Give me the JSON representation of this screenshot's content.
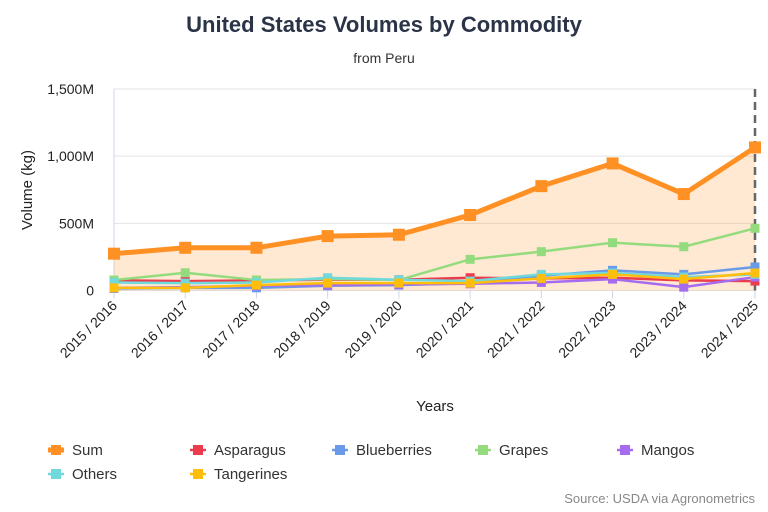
{
  "chart_data": {
    "type": "line",
    "title": "United States Volumes by Commodity",
    "subtitle": "from Peru",
    "xlabel": "Years",
    "ylabel": "Volume (kg)",
    "ylim": [
      0,
      1500
    ],
    "yticks": [
      {
        "v": 0,
        "label": "0"
      },
      {
        "v": 500,
        "label": "500M"
      },
      {
        "v": 1000,
        "label": "1,000M"
      },
      {
        "v": 1500,
        "label": "1,500M"
      }
    ],
    "grid": true,
    "legend_placement": "bottom",
    "categories": [
      "2015 / 2016",
      "2016 / 2017",
      "2017 / 2018",
      "2018 / 2019",
      "2019 / 2020",
      "2020 / 2021",
      "2021 / 2022",
      "2022 / 2023",
      "2023 / 2024",
      "2024 / 2025"
    ],
    "series": [
      {
        "name": "Sum",
        "color": "#ff9124",
        "area": true,
        "values": [
          274,
          318,
          318,
          405,
          415,
          562,
          777,
          946,
          718,
          1065
        ]
      },
      {
        "name": "Asparagus",
        "color": "#ec3b4c",
        "values": [
          75,
          70,
          75,
          80,
          80,
          95,
          90,
          95,
          75,
          70
        ]
      },
      {
        "name": "Blueberries",
        "color": "#6a9be8",
        "values": [
          15,
          20,
          20,
          35,
          40,
          55,
          110,
          150,
          120,
          175
        ]
      },
      {
        "name": "Grapes",
        "color": "#94db7e",
        "values": [
          78,
          132,
          78,
          85,
          78,
          232,
          289,
          356,
          326,
          463
        ]
      },
      {
        "name": "Mangos",
        "color": "#a56cf0",
        "values": [
          20,
          25,
          35,
          40,
          45,
          50,
          60,
          85,
          25,
          100
        ]
      },
      {
        "name": "Others",
        "color": "#6fd9dc",
        "values": [
          60,
          55,
          60,
          95,
          80,
          70,
          120,
          130,
          100,
          120
        ]
      },
      {
        "name": "Tangerines",
        "color": "#ffbe0b",
        "values": [
          20,
          20,
          40,
          55,
          55,
          55,
          90,
          120,
          85,
          130
        ]
      }
    ],
    "marker_line": "2024 / 2025",
    "source": "Source: USDA via Agronometrics"
  }
}
